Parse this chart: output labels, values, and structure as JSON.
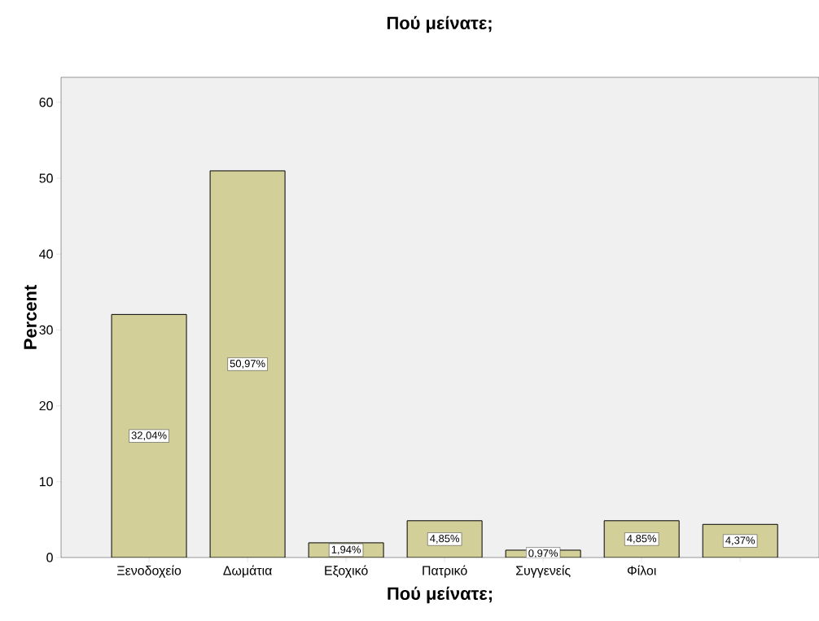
{
  "chart_data": {
    "type": "bar",
    "title": "Πού μείνατε;",
    "xlabel": "Πού μείνατε;",
    "ylabel": "Percent",
    "categories": [
      "Ξενοδοχείο",
      "Δωμάτια",
      "Εξοχικό",
      "Πατρικό",
      "Συγγενείς",
      "Φίλοι",
      null
    ],
    "values": [
      32.04,
      50.97,
      1.94,
      4.85,
      0.97,
      4.85,
      4.37
    ],
    "value_labels": [
      "32,04%",
      "50,97%",
      "1,94%",
      "4,85%",
      "0,97%",
      "4,85%",
      "4,37%"
    ],
    "color": "#d3cf98",
    "ylim": [
      0,
      63.3
    ],
    "yticks": [
      0,
      10,
      20,
      30,
      40,
      50,
      60
    ]
  }
}
